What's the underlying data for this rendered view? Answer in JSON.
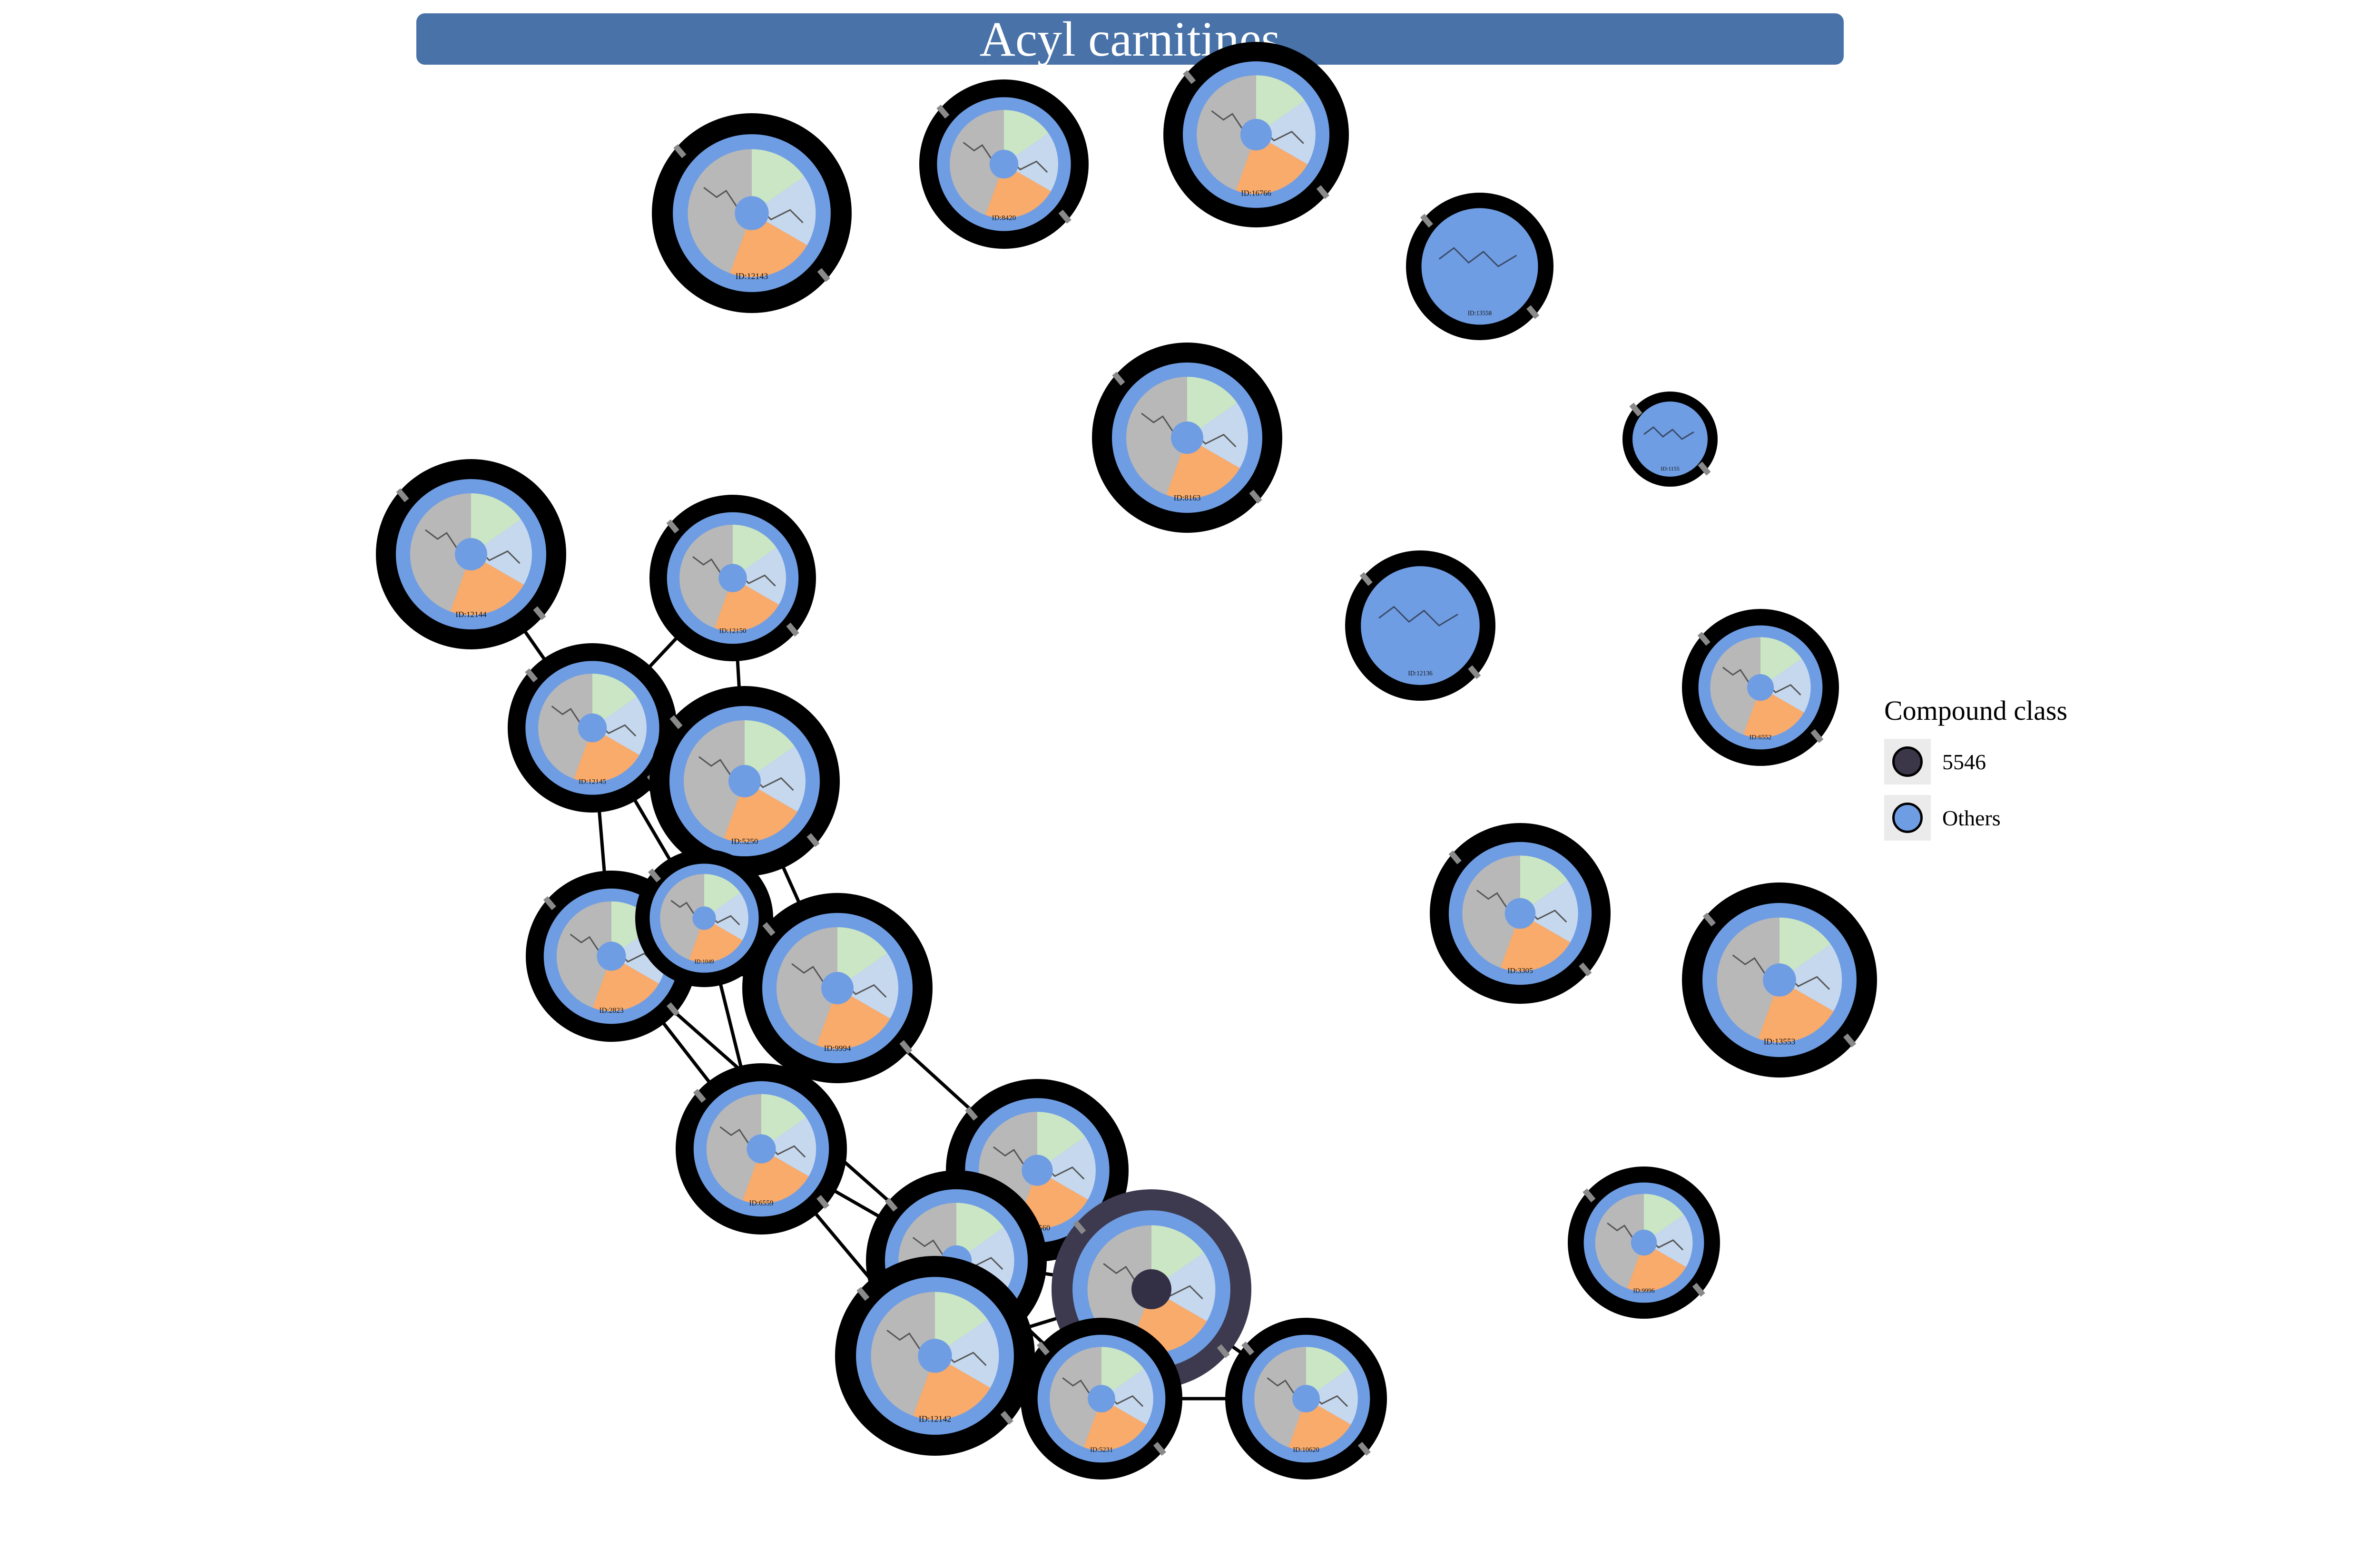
{
  "title": "Acyl carnitines",
  "colors": {
    "title_bg": "#4872a8",
    "node_ring": "#000000",
    "node_blue": "#6f9de3",
    "seg_gray": "#b8b8b8",
    "seg_green": "#cbe6c4",
    "seg_lightblue": "#c6d8ee",
    "seg_orange": "#f9ab6b",
    "highlight_ring": "#3d394e",
    "highlight_center": "#332f45",
    "edge": "#000000"
  },
  "legend": {
    "title": "Compound class",
    "items": [
      {
        "label": "5546",
        "color": "#3b3748"
      },
      {
        "label": "Others",
        "color": "#6f9de3"
      }
    ]
  },
  "nodes": [
    {
      "id": "ID:12143",
      "pie": true
    },
    {
      "id": "ID:8420",
      "pie": true
    },
    {
      "id": "ID:16766",
      "pie": true
    },
    {
      "id": "ID:13558",
      "pie": false
    },
    {
      "id": "ID:8163",
      "pie": true
    },
    {
      "id": "ID:1155",
      "pie": false
    },
    {
      "id": "ID:12144",
      "pie": true
    },
    {
      "id": "ID:12150",
      "pie": true
    },
    {
      "id": "ID:12136",
      "pie": false
    },
    {
      "id": "ID:6552",
      "pie": true
    },
    {
      "id": "ID:12145",
      "pie": true
    },
    {
      "id": "ID:5250",
      "pie": true
    },
    {
      "id": "ID:3305",
      "pie": true
    },
    {
      "id": "ID:13553",
      "pie": true
    },
    {
      "id": "ID:2823",
      "pie": true
    },
    {
      "id": "ID:1049",
      "pie": true
    },
    {
      "id": "ID:9994",
      "pie": true
    },
    {
      "id": "ID:6559",
      "pie": true
    },
    {
      "id": "ID:6560",
      "pie": true
    },
    {
      "id": "ID:9996",
      "pie": true
    },
    {
      "id": "ID:6971",
      "pie": true
    },
    {
      "id": "ID:5546",
      "pie": true,
      "highlight": true
    },
    {
      "id": "ID:12142",
      "pie": true
    },
    {
      "id": "ID:5231",
      "pie": true
    },
    {
      "id": "ID:10620",
      "pie": true
    }
  ],
  "edges": [
    [
      "ID:12144",
      "ID:12145"
    ],
    [
      "ID:12150",
      "ID:12145"
    ],
    [
      "ID:12150",
      "ID:5250"
    ],
    [
      "ID:12145",
      "ID:5250"
    ],
    [
      "ID:12145",
      "ID:2823"
    ],
    [
      "ID:12145",
      "ID:1049"
    ],
    [
      "ID:12145",
      "ID:9994"
    ],
    [
      "ID:5250",
      "ID:1049"
    ],
    [
      "ID:5250",
      "ID:9994"
    ],
    [
      "ID:2823",
      "ID:1049"
    ],
    [
      "ID:2823",
      "ID:9994"
    ],
    [
      "ID:2823",
      "ID:6559"
    ],
    [
      "ID:2823",
      "ID:6971"
    ],
    [
      "ID:1049",
      "ID:6559"
    ],
    [
      "ID:1049",
      "ID:9994"
    ],
    [
      "ID:9994",
      "ID:6560"
    ],
    [
      "ID:6559",
      "ID:6971"
    ],
    [
      "ID:6559",
      "ID:12142"
    ],
    [
      "ID:6971",
      "ID:5546"
    ],
    [
      "ID:6971",
      "ID:12142"
    ],
    [
      "ID:6971",
      "ID:5231"
    ],
    [
      "ID:6560",
      "ID:5546"
    ],
    [
      "ID:12142",
      "ID:5546"
    ],
    [
      "ID:12142",
      "ID:5231"
    ],
    [
      "ID:5546",
      "ID:5231"
    ],
    [
      "ID:5546",
      "ID:10620"
    ],
    [
      "ID:5231",
      "ID:10620"
    ]
  ]
}
